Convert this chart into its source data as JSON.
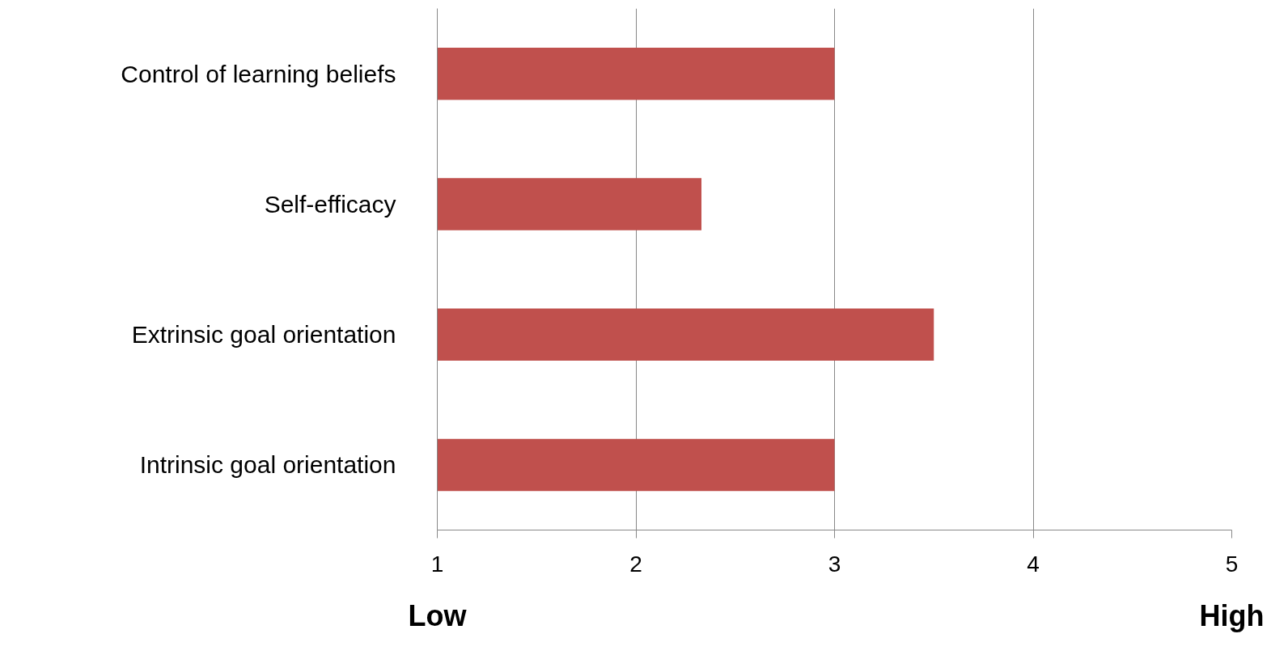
{
  "chart_data": {
    "type": "bar",
    "orientation": "horizontal",
    "categories": [
      "Control of learning beliefs",
      "Self-efficacy",
      "Extrinsic goal orientation",
      "Intrinsic goal orientation"
    ],
    "values": [
      3.0,
      2.33,
      3.5,
      3.0
    ],
    "color": "#c0504d",
    "xlim": [
      1,
      5
    ],
    "xticks": [
      1,
      2,
      3,
      4,
      5
    ],
    "grid": "x",
    "annotations": [
      "Low",
      "High"
    ]
  }
}
